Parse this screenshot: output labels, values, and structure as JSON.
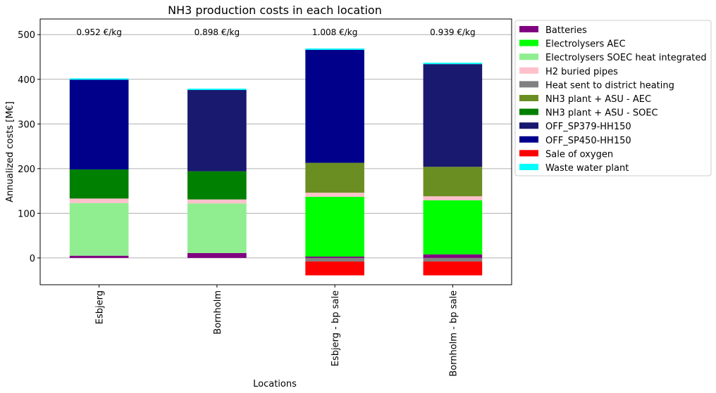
{
  "chart_data": {
    "type": "bar",
    "stacked": true,
    "title": "NH3 production costs in each location",
    "xlabel": "Locations",
    "ylabel": "Annualized costs [M€]",
    "ylim": [
      -60,
      535
    ],
    "yticks": [
      0,
      100,
      200,
      300,
      400,
      500
    ],
    "grid": "horizontal",
    "legend_position": "outside-right",
    "categories": [
      "Esbjerg",
      "Bornholm",
      "Esbjerg - bp sale",
      "Bornholm - bp sale"
    ],
    "annotations": [
      "0.952 €/kg",
      "0.898 €/kg",
      "1.008 €/kg",
      "0.939 €/kg"
    ],
    "series": [
      {
        "name": "Batteries",
        "color": "#800080",
        "values": [
          5,
          11,
          3,
          8
        ]
      },
      {
        "name": "Electrolysers AEC",
        "color": "#00ff00",
        "values": [
          0,
          0,
          134,
          121
        ]
      },
      {
        "name": "Electrolysers SOEC heat integrated",
        "color": "#90ee90",
        "values": [
          118,
          111,
          0,
          0
        ]
      },
      {
        "name": "H2 buried pipes",
        "color": "#ffc0cb",
        "values": [
          10,
          9,
          9,
          9
        ]
      },
      {
        "name": "Heat sent to district heating",
        "color": "#808080",
        "values": [
          0,
          0,
          -8,
          -8
        ]
      },
      {
        "name": "NH3 plant + ASU - AEC",
        "color": "#6b8e23",
        "values": [
          0,
          0,
          67,
          66
        ]
      },
      {
        "name": "NH3 plant + ASU - SOEC",
        "color": "#008000",
        "values": [
          65,
          63,
          0,
          0
        ]
      },
      {
        "name": "OFF_SP379-HH150",
        "color": "#191970",
        "values": [
          0,
          182,
          0,
          230
        ]
      },
      {
        "name": "OFF_SP450-HH150",
        "color": "#00008b",
        "values": [
          201,
          0,
          253,
          0
        ]
      },
      {
        "name": "Sale of oxygen",
        "color": "#ff0000",
        "values": [
          0,
          0,
          -31,
          -31
        ]
      },
      {
        "name": "Waste water plant",
        "color": "#00ffff",
        "values": [
          3,
          3,
          3,
          3
        ]
      }
    ]
  }
}
